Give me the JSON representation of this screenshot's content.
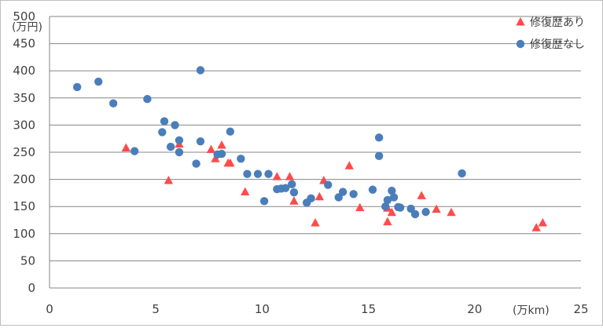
{
  "chart_data": {
    "type": "scatter",
    "xlim": [
      0,
      25
    ],
    "ylim": [
      0,
      500
    ],
    "x_ticks": [
      "0",
      "5",
      "10",
      "15",
      "20",
      "25"
    ],
    "y_ticks": [
      "0",
      "50",
      "100",
      "150",
      "200",
      "250",
      "300",
      "350",
      "400",
      "450",
      "500"
    ],
    "x_unit": "(万km)",
    "y_unit": "(万円)",
    "grid": true,
    "legend_position": "top-right",
    "series": [
      {
        "name": "修復歴あり",
        "marker": "triangle",
        "color": "#ff4b4b",
        "points": [
          [
            3.6,
            258
          ],
          [
            5.6,
            198
          ],
          [
            6.1,
            265
          ],
          [
            7.6,
            255
          ],
          [
            7.8,
            238
          ],
          [
            8.1,
            263
          ],
          [
            8.4,
            230
          ],
          [
            8.5,
            230
          ],
          [
            9.2,
            177
          ],
          [
            10.7,
            205
          ],
          [
            11.3,
            205
          ],
          [
            11.5,
            160
          ],
          [
            12.5,
            120
          ],
          [
            12.7,
            168
          ],
          [
            12.9,
            198
          ],
          [
            14.1,
            225
          ],
          [
            14.6,
            148
          ],
          [
            15.9,
            147
          ],
          [
            15.9,
            122
          ],
          [
            16.1,
            139
          ],
          [
            17.5,
            170
          ],
          [
            18.2,
            145
          ],
          [
            18.9,
            139
          ],
          [
            22.9,
            111
          ],
          [
            23.2,
            120
          ]
        ]
      },
      {
        "name": "修復歴なし",
        "marker": "circle",
        "color": "#4a7ebb",
        "points": [
          [
            1.3,
            370
          ],
          [
            2.3,
            380
          ],
          [
            3.0,
            340
          ],
          [
            4.0,
            252
          ],
          [
            4.6,
            348
          ],
          [
            5.3,
            287
          ],
          [
            5.4,
            307
          ],
          [
            5.7,
            260
          ],
          [
            5.9,
            300
          ],
          [
            6.1,
            272
          ],
          [
            6.1,
            250
          ],
          [
            6.9,
            229
          ],
          [
            7.1,
            401
          ],
          [
            7.1,
            270
          ],
          [
            7.9,
            246
          ],
          [
            8.1,
            247
          ],
          [
            8.5,
            288
          ],
          [
            9.0,
            238
          ],
          [
            9.3,
            210
          ],
          [
            9.8,
            210
          ],
          [
            10.1,
            160
          ],
          [
            10.3,
            210
          ],
          [
            10.7,
            182
          ],
          [
            10.9,
            183
          ],
          [
            11.1,
            184
          ],
          [
            11.4,
            191
          ],
          [
            11.5,
            176
          ],
          [
            12.1,
            157
          ],
          [
            12.3,
            165
          ],
          [
            13.1,
            190
          ],
          [
            13.6,
            167
          ],
          [
            13.8,
            177
          ],
          [
            14.3,
            173
          ],
          [
            15.2,
            181
          ],
          [
            15.5,
            277
          ],
          [
            15.5,
            243
          ],
          [
            15.8,
            150
          ],
          [
            15.9,
            162
          ],
          [
            16.1,
            179
          ],
          [
            16.2,
            167
          ],
          [
            16.4,
            149
          ],
          [
            16.5,
            148
          ],
          [
            17.0,
            146
          ],
          [
            17.2,
            136
          ],
          [
            17.7,
            140
          ],
          [
            19.4,
            211
          ]
        ]
      }
    ]
  }
}
